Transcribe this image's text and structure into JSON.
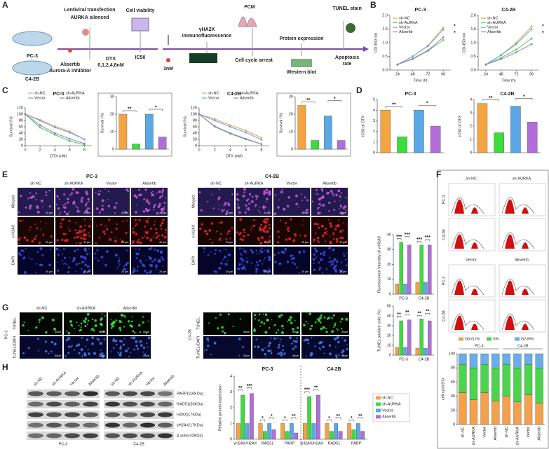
{
  "figure": {
    "panel_labels": [
      "A",
      "B",
      "C",
      "D",
      "E",
      "F",
      "G",
      "H"
    ],
    "schematic": {
      "cell_lines": [
        "PC-3",
        "C4-2B"
      ],
      "steps": [
        "Lentiviral transfection",
        "AURKA silenced",
        "Cell viability",
        "Alisertib",
        "Aurora-A inhibitor",
        "DTX",
        "0,1,2,4,8nM",
        "IC50",
        "3nM",
        "γHA2X",
        "immunofluorescence",
        "FCM",
        "Cell cycle arrest",
        "Protein expression",
        "Western blot",
        "TUNEL stain",
        "Apoptosis",
        "rate"
      ]
    },
    "if_panel": {
      "cell_lines": [
        "PC-3",
        "C4-2B"
      ],
      "groups": [
        "sh-NC",
        "sh-AURKA",
        "Vector",
        "Alisertib"
      ],
      "channels": [
        "Merged",
        "γ-H2AX",
        "DAPI"
      ],
      "scale": "20 μm"
    },
    "flow_panel": {
      "groups": [
        "sh-NC",
        "sh-AURKA",
        "Vector",
        "Alisertib"
      ],
      "cell_lines": [
        "PC-3",
        "C4-2B"
      ]
    },
    "tunel_panel": {
      "groups": [
        "sh-NC",
        "sh-AURKA",
        "Alisertib"
      ],
      "channels": [
        "TUNEL",
        "TUNEL/DAPI"
      ],
      "cell_lines": [
        "PC-3",
        "C4-2B"
      ],
      "scale": "50um"
    },
    "blot_panel": {
      "lanes": [
        "sh-NC",
        "sh-AURKA",
        "Vector",
        "Alisertib"
      ],
      "bands": [
        "PARP(116KDa)",
        "RAD51(36KDa)",
        "H2AX(17KDa)",
        "γH2AX(17KDa)",
        "β-actin(42KDa)"
      ],
      "cell_lines": [
        "PC-3",
        "C4-2B"
      ]
    }
  },
  "chart_data": [
    {
      "type": "line",
      "title": "PC-3",
      "xlabel": "Time (h)",
      "ylabel": "OD 450 nm",
      "x": [
        24,
        48,
        72,
        96
      ],
      "xlim": [
        12,
        108
      ],
      "xticks": [
        24,
        48,
        72,
        96
      ],
      "ylim": [
        0,
        2
      ],
      "yticks": [
        {
          "value": 0,
          "label": "0.0"
        },
        {
          "value": 0.5,
          "label": "0.5"
        },
        {
          "value": 1,
          "label": "1.0"
        },
        {
          "value": 1.5,
          "label": "1.5"
        },
        {
          "value": 2,
          "label": "2.0"
        }
      ],
      "legend": "upper left",
      "annotations": [
        "*",
        "*"
      ],
      "series": [
        {
          "name": "sh-NC",
          "color": "#f5a442",
          "values": [
            0.2,
            0.5,
            0.9,
            1.55
          ]
        },
        {
          "name": "sh-AURKA",
          "color": "#3ddc3d",
          "values": [
            0.2,
            0.4,
            0.7,
            1.1
          ]
        },
        {
          "name": "Vector",
          "color": "#5aa8e6",
          "values": [
            0.2,
            0.5,
            0.88,
            1.48
          ]
        },
        {
          "name": "Alisertib",
          "color": "#b06fd8",
          "values": [
            0.2,
            0.42,
            0.72,
            1.2
          ]
        }
      ]
    },
    {
      "type": "line",
      "title": "C4-2B",
      "xlabel": "Time (h)",
      "ylabel": "OD 450 nm",
      "x": [
        24,
        48,
        72,
        96
      ],
      "xlim": [
        12,
        108
      ],
      "xticks": [
        24,
        48,
        72,
        96
      ],
      "ylim": [
        0,
        2
      ],
      "yticks": [
        {
          "value": 0,
          "label": "0.0"
        },
        {
          "value": 0.5,
          "label": "0.5"
        },
        {
          "value": 1,
          "label": "1.0"
        },
        {
          "value": 1.5,
          "label": "1.5"
        },
        {
          "value": 2,
          "label": "2.0"
        }
      ],
      "legend": "upper left",
      "annotations": [
        "*",
        "*"
      ],
      "series": [
        {
          "name": "sh-NC",
          "color": "#f5a442",
          "values": [
            0.2,
            0.55,
            1.0,
            1.6
          ]
        },
        {
          "name": "sh-AURKA",
          "color": "#3ddc3d",
          "values": [
            0.2,
            0.45,
            0.75,
            1.15
          ]
        },
        {
          "name": "Vector",
          "color": "#5aa8e6",
          "values": [
            0.2,
            0.55,
            0.95,
            1.5
          ]
        },
        {
          "name": "Alisertib",
          "color": "#b06fd8",
          "values": [
            0.2,
            0.4,
            0.65,
            0.95
          ]
        }
      ]
    },
    {
      "type": "line",
      "title": "PC-3",
      "xlabel": "DTX (nM)",
      "ylabel": "Survival (%)",
      "x": [
        0,
        2,
        4,
        6,
        8
      ],
      "xlim": [
        0,
        9
      ],
      "xticks": [
        0,
        2,
        4,
        6,
        8
      ],
      "ylim": [
        0,
        120
      ],
      "yticks": [
        0,
        20,
        40,
        60,
        80,
        100,
        120
      ],
      "legend": "top",
      "series": [
        {
          "name": "sh-NC",
          "color": "#f5a442",
          "values": [
            100,
            82,
            62,
            45,
            20
          ]
        },
        {
          "name": "sh-AURKA",
          "color": "#3ddc3d",
          "values": [
            100,
            58,
            35,
            15,
            3
          ]
        },
        {
          "name": "Vector",
          "color": "#5aa8e6",
          "values": [
            100,
            80,
            58,
            42,
            20
          ]
        },
        {
          "name": "Alisertib",
          "color": "#b06fd8",
          "values": [
            100,
            65,
            40,
            22,
            7
          ]
        }
      ]
    },
    {
      "type": "bar",
      "ylabel": "Survival (%)",
      "categories": [
        null,
        null,
        null,
        null
      ],
      "values": [
        20,
        3,
        20,
        7
      ],
      "colors": [
        "#f5a442",
        "#3ddc3d",
        "#5aa8e6",
        "#b06fd8"
      ],
      "ylim": [
        0,
        30
      ],
      "yticks": [
        0,
        10,
        20,
        30
      ],
      "annotations": [
        "**",
        "*"
      ]
    },
    {
      "type": "line",
      "title": "C4-2B",
      "xlabel": "DTX (nM)",
      "ylabel": "Survival (%)",
      "x": [
        0,
        2,
        4,
        6,
        8
      ],
      "xlim": [
        0,
        9
      ],
      "xticks": [
        0,
        2,
        4,
        6,
        8
      ],
      "ylim": [
        0,
        120
      ],
      "yticks": [
        0,
        20,
        40,
        60,
        80,
        100,
        120
      ],
      "legend": "top",
      "series": [
        {
          "name": "sh-NC",
          "color": "#f5a442",
          "values": [
            100,
            85,
            65,
            48,
            25
          ]
        },
        {
          "name": "sh-AURKA",
          "color": "#3ddc3d",
          "values": [
            100,
            60,
            38,
            20,
            5
          ]
        },
        {
          "name": "Vector",
          "color": "#5aa8e6",
          "values": [
            100,
            80,
            60,
            42,
            19
          ]
        },
        {
          "name": "Alisertib",
          "color": "#b06fd8",
          "values": [
            100,
            62,
            40,
            22,
            5
          ]
        }
      ]
    },
    {
      "type": "bar",
      "ylabel": "Survival (%)",
      "categories": [
        null,
        null,
        null,
        null
      ],
      "values": [
        25,
        5,
        19,
        5
      ],
      "colors": [
        "#f5a442",
        "#3ddc3d",
        "#5aa8e6",
        "#b06fd8"
      ],
      "ylim": [
        0,
        30
      ],
      "yticks": [
        0,
        10,
        20,
        30
      ],
      "annotations": [
        "**",
        "*"
      ]
    },
    {
      "type": "bar",
      "title": "PC-3",
      "ylabel": "IC50 of DTX",
      "categories": [
        null,
        null,
        null,
        null
      ],
      "values": [
        4,
        1.5,
        4,
        2.5
      ],
      "colors": [
        "#f5a442",
        "#3ddc3d",
        "#5aa8e6",
        "#b06fd8"
      ],
      "ylim": [
        0,
        5
      ],
      "yticks": [
        0,
        1,
        2,
        3,
        4,
        5
      ],
      "annotations": [
        "**",
        "*"
      ]
    },
    {
      "type": "bar",
      "title": "C4-2B",
      "ylabel": "IC50 of DTX",
      "categories": [
        null,
        null,
        null,
        null
      ],
      "values": [
        3.7,
        1.5,
        3.5,
        2.3
      ],
      "colors": [
        "#f5a442",
        "#3ddc3d",
        "#5aa8e6",
        "#b06fd8"
      ],
      "ylim": [
        0,
        4
      ],
      "yticks": [
        0,
        1,
        2,
        3,
        4
      ],
      "annotations": [
        "**",
        "*"
      ]
    },
    {
      "type": "bar",
      "ylabel": "Fluorescence Intensity of γ-H2AX",
      "categories": [
        "PC-3",
        "C4-2B"
      ],
      "ylim": [
        0,
        40
      ],
      "yticks": [
        0,
        10,
        20,
        30,
        40
      ],
      "annotations": [
        "***",
        "***",
        "***",
        "***"
      ],
      "series": [
        {
          "name": "sh-NC",
          "color": "#f5a442",
          "values": [
            7,
            8
          ]
        },
        {
          "name": "sh-AURKA",
          "color": "#3ddc3d",
          "values": [
            35,
            33
          ]
        },
        {
          "name": "Vector",
          "color": "#5aa8e6",
          "values": [
            7,
            8
          ]
        },
        {
          "name": "Alisertib",
          "color": "#b06fd8",
          "values": [
            33,
            33
          ]
        }
      ]
    },
    {
      "type": "bar",
      "ylabel": "TUNEL positive cells (%)",
      "categories": [
        "PC-3",
        "C4-2B"
      ],
      "ylim": [
        0,
        50
      ],
      "yticks": [
        0,
        10,
        20,
        30,
        40,
        50
      ],
      "annotations": [
        "**",
        "**",
        "**",
        "**"
      ],
      "series": [
        {
          "name": "sh-NC",
          "color": "#f5a442",
          "values": [
            8,
            7
          ]
        },
        {
          "name": "sh-AURKA",
          "color": "#3ddc3d",
          "values": [
            35,
            37
          ]
        },
        {
          "name": "Vector",
          "color": "#5aa8e6",
          "values": [
            8,
            7
          ]
        },
        {
          "name": "Alisertib",
          "color": "#b06fd8",
          "values": [
            36,
            35
          ]
        }
      ]
    },
    {
      "type": "stacked_bar",
      "ylabel": "cell cycle(%)",
      "legend": "top",
      "group_labels": [
        "PC-3",
        "C4-2B"
      ],
      "categories": [
        "sh-NC",
        "sh-AURKA",
        "Vector",
        "Alisertib",
        "sh-NC",
        "sh-AURKA",
        "Vector",
        "Alisertib"
      ],
      "ylim": [
        0,
        100
      ],
      "yticks": [
        0,
        20,
        40,
        60,
        80,
        100
      ],
      "series": [
        {
          "name": "G0-G1%",
          "color": "#f5a04a",
          "values": [
            45,
            35,
            45,
            33,
            40,
            32,
            42,
            30
          ]
        },
        {
          "name": "S%",
          "color": "#4cd44c",
          "values": [
            40,
            45,
            40,
            47,
            45,
            48,
            43,
            50
          ]
        },
        {
          "name": "G2-M%",
          "color": "#6aaee8",
          "values": [
            15,
            20,
            15,
            20,
            15,
            20,
            15,
            20
          ]
        }
      ]
    },
    {
      "type": "bar",
      "ylabel": "Relative protein expression",
      "legend": "right",
      "group_labels": [
        "PC-3",
        "C4-2B"
      ],
      "categories": [
        "γH2AX/H2AX",
        "RAD51",
        "PARP",
        "γH2AX/H2AX",
        "RAD51",
        "PARP"
      ],
      "ylim": [
        0,
        4
      ],
      "yticks": [
        0,
        1,
        2,
        3,
        4
      ],
      "annotations": [
        "**",
        "***",
        "*",
        "*",
        "*",
        "**",
        "***",
        "**",
        "*",
        "**",
        "*",
        "**"
      ],
      "series": [
        {
          "name": "sh-NC",
          "color": "#f5a442",
          "values": [
            1,
            1,
            1,
            1,
            1,
            1
          ]
        },
        {
          "name": "sh-AURKA",
          "color": "#3ddc3d",
          "values": [
            2.8,
            0.5,
            0.5,
            2.7,
            0.5,
            0.6
          ]
        },
        {
          "name": "Vector",
          "color": "#5aa8e6",
          "values": [
            1,
            1,
            1,
            1,
            1,
            1
          ]
        },
        {
          "name": "Alisertib",
          "color": "#b06fd8",
          "values": [
            2.9,
            0.6,
            0.4,
            2.8,
            0.5,
            0.5
          ]
        }
      ]
    }
  ]
}
